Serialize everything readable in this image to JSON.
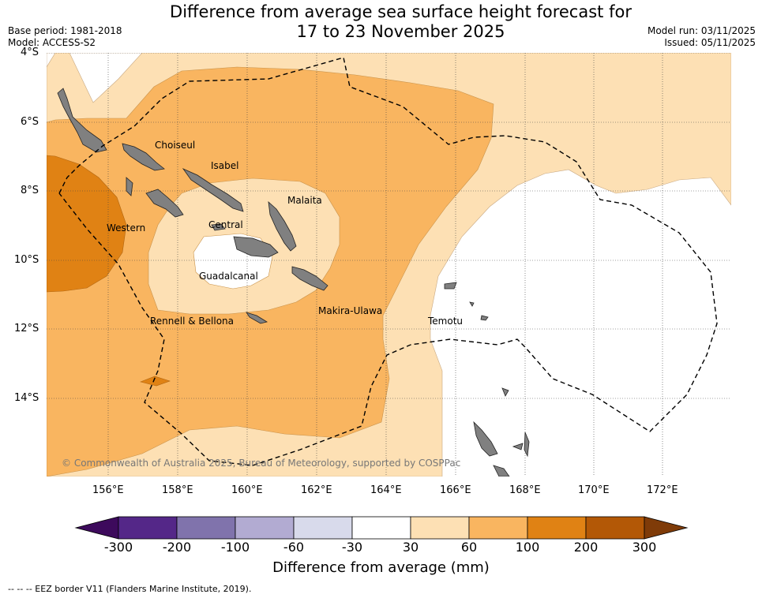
{
  "header": {
    "title_line1": "Difference from average sea surface height forecast for",
    "title_line2": "17 to 23 November 2025",
    "base_period": "Base period: 1981-2018",
    "model": "Model: ACCESS-S2",
    "model_run": "Model run: 03/11/2025",
    "issued": "Issued: 05/11/2025"
  },
  "map": {
    "lat_labels": [
      "4°S",
      "6°S",
      "8°S",
      "10°S",
      "12°S",
      "14°S"
    ],
    "lon_labels": [
      "156°E",
      "158°E",
      "160°E",
      "162°E",
      "164°E",
      "166°E",
      "168°E",
      "170°E",
      "172°E"
    ],
    "regions": [
      "Choiseul",
      "Isabel",
      "Malaita",
      "Western",
      "Central",
      "Guadalcanal",
      "Rennell & Bellona",
      "Makira-Ulawa",
      "Temotu"
    ],
    "copyright": "© Commonwealth of Australia 2025, Bureau of Meteorology, supported by COSPPac"
  },
  "colorbar": {
    "ticks": [
      "-300",
      "-200",
      "-100",
      "-60",
      "-30",
      "30",
      "60",
      "100",
      "200",
      "300"
    ],
    "colors": [
      "#3d0a5c",
      "#542788",
      "#8073ac",
      "#b2abd2",
      "#d8daeb",
      "#ffffff",
      "#fde0b4",
      "#f9b560",
      "#e08214",
      "#b35806",
      "#7f3b08"
    ],
    "label": "Difference from average (mm)"
  },
  "legend": {
    "eez_note": "--  --  -- EEZ border V11 (Flanders Marine Institute, 2019)."
  }
}
